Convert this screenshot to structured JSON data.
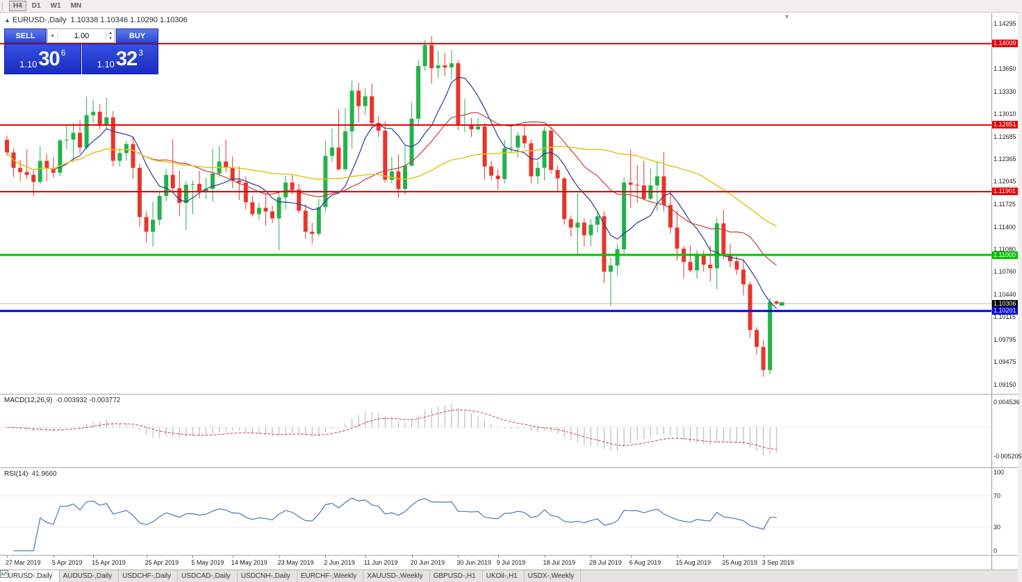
{
  "toolbar": {
    "timeframes": [
      "H4",
      "D1",
      "W1",
      "MN"
    ],
    "active": "H4"
  },
  "chart_header": {
    "collapse_icon": "▲",
    "symbol": "EURUSD-,Daily",
    "ohlc": "1.10338 1.10346 1.10290 1.10306"
  },
  "trade_panel": {
    "sell_label": "SELL",
    "buy_label": "BUY",
    "volume": "1.00",
    "bid": {
      "prefix": "1.10",
      "big": "30",
      "sup": "6"
    },
    "ask": {
      "prefix": "1.10",
      "big": "32",
      "sup": "3"
    }
  },
  "colors": {
    "bull": "#23b24b",
    "bear": "#e8352c",
    "ma_fast": "#2b3990",
    "ma_mid": "#cf3a3a",
    "ma_slow": "#e3c514",
    "macd_hist": "#b0b0b0",
    "macd_signal": "#cc4444",
    "rsi": "#4a78b0",
    "level_red": "#e60000",
    "level_green": "#00c200",
    "level_blue": "#0000d8",
    "current_price_line": "#b8b8b8"
  },
  "price_axis": {
    "ticks": [
      1.14295,
      1.1365,
      1.1333,
      1.1301,
      1.12685,
      1.12365,
      1.12045,
      1.11725,
      1.114,
      1.1108,
      1.1076,
      1.1044,
      1.10115,
      1.09795,
      1.09475,
      1.0915
    ],
    "tags": [
      {
        "text": "1.14009",
        "price": 1.14009,
        "bg": "#e60000"
      },
      {
        "text": "1.12851",
        "price": 1.12851,
        "bg": "#e60000"
      },
      {
        "text": "1.11901",
        "price": 1.11901,
        "bg": "#e60000"
      },
      {
        "text": "1.11000",
        "price": 1.11,
        "bg": "#00c200"
      },
      {
        "text": "1.10306",
        "price": 1.10306,
        "bg": "#000000"
      },
      {
        "text": "1.10201",
        "price": 1.10201,
        "bg": "#0000d8"
      }
    ]
  },
  "tabs": [
    {
      "label": "EURUSD-,Daily",
      "active": true
    },
    {
      "label": "AUDUSD-,Daily",
      "active": false
    },
    {
      "label": "USDCHF-,Daily",
      "active": false
    },
    {
      "label": "USDCAD-,Daily",
      "active": false
    },
    {
      "label": "USDCNH-,Daily",
      "active": false
    },
    {
      "label": "EURCHF-,Weekly",
      "active": false
    },
    {
      "label": "XAUUSD-,Weekly",
      "active": false
    },
    {
      "label": "GBPUSD-,H1",
      "active": false
    },
    {
      "label": "UKOil-,H1",
      "active": false
    },
    {
      "label": "USDX-,Weekly",
      "active": false
    }
  ],
  "chart_data": {
    "type": "candlestick",
    "symbol": "EURUSD",
    "timeframe": "Daily",
    "ylim": [
      1.0915,
      1.14295
    ],
    "hlines": [
      {
        "price": 1.10306,
        "color": "#b8b8b8",
        "width": 1,
        "behind": true
      },
      {
        "price": 1.14009,
        "color": "#e60000",
        "width": 2,
        "behind": false
      },
      {
        "price": 1.12851,
        "color": "#e60000",
        "width": 2,
        "behind": false
      },
      {
        "price": 1.11901,
        "color": "#e60000",
        "width": 2,
        "behind": false
      },
      {
        "price": 1.11,
        "color": "#00c200",
        "width": 3,
        "behind": false
      },
      {
        "price": 1.10201,
        "color": "#0000d8",
        "width": 3,
        "behind": false
      }
    ],
    "moving_averages": [
      {
        "period": 8,
        "color": "#2b3990",
        "width": 1.2
      },
      {
        "period": 20,
        "color": "#cf3a3a",
        "width": 1.2
      },
      {
        "period": 44,
        "color": "#e3c514",
        "width": 1.5
      }
    ],
    "date_labels": [
      {
        "label": "27 Mar 2019",
        "index": 0
      },
      {
        "label": "5 Apr 2019",
        "index": 7
      },
      {
        "label": "15 Apr 2019",
        "index": 13
      },
      {
        "label": "25 Apr 2019",
        "index": 21
      },
      {
        "label": "5 May 2019",
        "index": 28
      },
      {
        "label": "14 May 2019",
        "index": 34
      },
      {
        "label": "23 May 2019",
        "index": 41
      },
      {
        "label": "2 Jun 2019",
        "index": 48
      },
      {
        "label": "11 Jun 2019",
        "index": 54
      },
      {
        "label": "20 Jun 2019",
        "index": 61
      },
      {
        "label": "30 Jun 2019",
        "index": 68
      },
      {
        "label": "9 Jul 2019",
        "index": 74
      },
      {
        "label": "18 Jul 2019",
        "index": 81
      },
      {
        "label": "28 Jul 2019",
        "index": 88
      },
      {
        "label": "6 Aug 2019",
        "index": 94
      },
      {
        "label": "15 Aug 2019",
        "index": 101
      },
      {
        "label": "25 Aug 2019",
        "index": 108
      },
      {
        "label": "3 Sep 2019",
        "index": 114
      }
    ],
    "candles": [
      [
        1.1264,
        1.127,
        1.1241,
        1.1246
      ],
      [
        1.1246,
        1.1252,
        1.1211,
        1.1224
      ],
      [
        1.1224,
        1.1235,
        1.1205,
        1.1218
      ],
      [
        1.1218,
        1.125,
        1.1208,
        1.1214
      ],
      [
        1.1214,
        1.122,
        1.1183,
        1.1204
      ],
      [
        1.1204,
        1.1255,
        1.12,
        1.1234
      ],
      [
        1.1234,
        1.1244,
        1.1205,
        1.1223
      ],
      [
        1.1223,
        1.124,
        1.121,
        1.1217
      ],
      [
        1.1217,
        1.1265,
        1.1212,
        1.1263
      ],
      [
        1.1263,
        1.1285,
        1.125,
        1.1264
      ],
      [
        1.1264,
        1.1288,
        1.1232,
        1.1274
      ],
      [
        1.1274,
        1.1292,
        1.1245,
        1.1253
      ],
      [
        1.1253,
        1.1325,
        1.125,
        1.1299
      ],
      [
        1.1299,
        1.132,
        1.1288,
        1.1304
      ],
      [
        1.1304,
        1.1315,
        1.1279,
        1.1284
      ],
      [
        1.1284,
        1.1324,
        1.128,
        1.1296
      ],
      [
        1.1296,
        1.1305,
        1.1226,
        1.1234
      ],
      [
        1.1234,
        1.1252,
        1.1226,
        1.1245
      ],
      [
        1.1245,
        1.1262,
        1.1234,
        1.1258
      ],
      [
        1.1258,
        1.1268,
        1.1208,
        1.1224
      ],
      [
        1.1224,
        1.123,
        1.114,
        1.1154
      ],
      [
        1.1154,
        1.1162,
        1.1118,
        1.1133
      ],
      [
        1.1133,
        1.1176,
        1.1112,
        1.115
      ],
      [
        1.115,
        1.119,
        1.1142,
        1.1184
      ],
      [
        1.1184,
        1.1222,
        1.1176,
        1.1214
      ],
      [
        1.1214,
        1.1265,
        1.119,
        1.1195
      ],
      [
        1.1195,
        1.122,
        1.1155,
        1.1174
      ],
      [
        1.1174,
        1.1205,
        1.1135,
        1.12
      ],
      [
        1.12,
        1.1206,
        1.1158,
        1.1201
      ],
      [
        1.1201,
        1.122,
        1.118,
        1.119
      ],
      [
        1.119,
        1.121,
        1.118,
        1.1194
      ],
      [
        1.1194,
        1.1251,
        1.1176,
        1.1216
      ],
      [
        1.1216,
        1.1255,
        1.1211,
        1.1233
      ],
      [
        1.1233,
        1.1264,
        1.1218,
        1.1224
      ],
      [
        1.1224,
        1.124,
        1.1195,
        1.1206
      ],
      [
        1.1206,
        1.1226,
        1.1178,
        1.1203
      ],
      [
        1.1203,
        1.1212,
        1.1165,
        1.1175
      ],
      [
        1.1175,
        1.1184,
        1.1155,
        1.1158
      ],
      [
        1.1158,
        1.1175,
        1.115,
        1.1167
      ],
      [
        1.1167,
        1.1188,
        1.1142,
        1.1162
      ],
      [
        1.1162,
        1.117,
        1.1145,
        1.1152
      ],
      [
        1.1152,
        1.1188,
        1.1107,
        1.1182
      ],
      [
        1.1182,
        1.1213,
        1.1165,
        1.1203
      ],
      [
        1.1203,
        1.1215,
        1.1186,
        1.1193
      ],
      [
        1.1193,
        1.1201,
        1.1159,
        1.1163
      ],
      [
        1.1163,
        1.1172,
        1.1123,
        1.1133
      ],
      [
        1.1133,
        1.1146,
        1.1116,
        1.113
      ],
      [
        1.113,
        1.118,
        1.1126,
        1.1168
      ],
      [
        1.1168,
        1.1263,
        1.116,
        1.1241
      ],
      [
        1.1241,
        1.128,
        1.1232,
        1.1253
      ],
      [
        1.1253,
        1.1307,
        1.122,
        1.1222
      ],
      [
        1.1222,
        1.1309,
        1.1219,
        1.1276
      ],
      [
        1.1276,
        1.1348,
        1.1251,
        1.1334
      ],
      [
        1.1334,
        1.1345,
        1.1289,
        1.1312
      ],
      [
        1.1312,
        1.1338,
        1.13,
        1.1326
      ],
      [
        1.1326,
        1.1344,
        1.1282,
        1.1288
      ],
      [
        1.1288,
        1.1298,
        1.1268,
        1.1277
      ],
      [
        1.1277,
        1.129,
        1.1203,
        1.1207
      ],
      [
        1.1207,
        1.124,
        1.1202,
        1.1219
      ],
      [
        1.1219,
        1.1243,
        1.1181,
        1.1194
      ],
      [
        1.1194,
        1.1255,
        1.1186,
        1.1227
      ],
      [
        1.1227,
        1.1317,
        1.1226,
        1.1294
      ],
      [
        1.1294,
        1.1378,
        1.1286,
        1.1369
      ],
      [
        1.1369,
        1.1406,
        1.1362,
        1.1399
      ],
      [
        1.1399,
        1.1412,
        1.1344,
        1.1366
      ],
      [
        1.1366,
        1.1391,
        1.1352,
        1.137
      ],
      [
        1.137,
        1.1388,
        1.1355,
        1.1367
      ],
      [
        1.1367,
        1.1392,
        1.1351,
        1.1373
      ],
      [
        1.1373,
        1.1377,
        1.1278,
        1.1285
      ],
      [
        1.1285,
        1.1322,
        1.1275,
        1.1285
      ],
      [
        1.1285,
        1.1295,
        1.1268,
        1.1279
      ],
      [
        1.1279,
        1.1295,
        1.1277,
        1.1283
      ],
      [
        1.1283,
        1.1288,
        1.1207,
        1.1226
      ],
      [
        1.1226,
        1.1234,
        1.1206,
        1.1213
      ],
      [
        1.1213,
        1.1222,
        1.1193,
        1.1208
      ],
      [
        1.1208,
        1.1264,
        1.1202,
        1.1252
      ],
      [
        1.1252,
        1.1285,
        1.1245,
        1.1253
      ],
      [
        1.1253,
        1.1275,
        1.1239,
        1.127
      ],
      [
        1.127,
        1.1284,
        1.1252,
        1.1259
      ],
      [
        1.1259,
        1.1264,
        1.1202,
        1.1212
      ],
      [
        1.1212,
        1.1233,
        1.1201,
        1.1224
      ],
      [
        1.1224,
        1.1282,
        1.1206,
        1.1277
      ],
      [
        1.1277,
        1.1282,
        1.1216,
        1.1221
      ],
      [
        1.1221,
        1.1227,
        1.1191,
        1.1209
      ],
      [
        1.1209,
        1.1211,
        1.1143,
        1.1151
      ],
      [
        1.1151,
        1.1156,
        1.1126,
        1.1139
      ],
      [
        1.1139,
        1.1188,
        1.1101,
        1.1146
      ],
      [
        1.1146,
        1.1152,
        1.1112,
        1.1128
      ],
      [
        1.1128,
        1.1151,
        1.1113,
        1.1143
      ],
      [
        1.1143,
        1.1162,
        1.1132,
        1.1155
      ],
      [
        1.1155,
        1.1162,
        1.106,
        1.1076
      ],
      [
        1.1076,
        1.1096,
        1.1027,
        1.1085
      ],
      [
        1.1085,
        1.1116,
        1.107,
        1.1108
      ],
      [
        1.1108,
        1.1211,
        1.1101,
        1.1203
      ],
      [
        1.1203,
        1.125,
        1.1167,
        1.12
      ],
      [
        1.12,
        1.1228,
        1.1174,
        1.1199
      ],
      [
        1.1199,
        1.1234,
        1.1178,
        1.118
      ],
      [
        1.118,
        1.1223,
        1.1178,
        1.1199
      ],
      [
        1.1199,
        1.1232,
        1.1163,
        1.1212
      ],
      [
        1.1212,
        1.1246,
        1.1162,
        1.1171
      ],
      [
        1.1171,
        1.1192,
        1.1131,
        1.1139
      ],
      [
        1.1139,
        1.1163,
        1.1092,
        1.1109
      ],
      [
        1.1109,
        1.1113,
        1.1066,
        1.109
      ],
      [
        1.109,
        1.1114,
        1.1075,
        1.1078
      ],
      [
        1.1078,
        1.1107,
        1.1066,
        1.1099
      ],
      [
        1.1099,
        1.1106,
        1.1076,
        1.1086
      ],
      [
        1.1086,
        1.1113,
        1.1062,
        1.1081
      ],
      [
        1.1081,
        1.1153,
        1.1051,
        1.1145
      ],
      [
        1.1145,
        1.1164,
        1.1094,
        1.1101
      ],
      [
        1.1101,
        1.1116,
        1.1082,
        1.1091
      ],
      [
        1.1091,
        1.1098,
        1.1072,
        1.1079
      ],
      [
        1.1079,
        1.1094,
        1.1042,
        1.1058
      ],
      [
        1.1058,
        1.1062,
        1.0982,
        1.0993
      ],
      [
        1.0993,
        1.0997,
        1.0958,
        1.0969
      ],
      [
        1.0969,
        1.0979,
        1.0926,
        1.0936
      ],
      [
        1.0936,
        1.1039,
        1.093,
        1.1033
      ],
      [
        1.10338,
        1.10346,
        1.1029,
        1.10306
      ]
    ],
    "indicators": [
      {
        "type": "MACD",
        "params": [
          12,
          26,
          9
        ],
        "label": "MACD(12,26,9)",
        "values_text": "-0.003932 -0.003772",
        "ylim": [
          -0.005205,
          0.004536
        ],
        "axis_labels": [
          {
            "text": "0.004536",
            "value": 0.004536
          },
          {
            "text": "-0.005205",
            "value": -0.005205
          }
        ]
      },
      {
        "type": "RSI",
        "params": [
          14
        ],
        "label": "RSI(14)",
        "values_text": "41.9660",
        "ylim": [
          0,
          100
        ],
        "levels": [
          70,
          30
        ],
        "axis_labels": [
          {
            "text": "100",
            "value": 100
          },
          {
            "text": "70",
            "value": 70
          },
          {
            "text": "30",
            "value": 30
          },
          {
            "text": "0",
            "value": 0
          }
        ]
      }
    ]
  }
}
